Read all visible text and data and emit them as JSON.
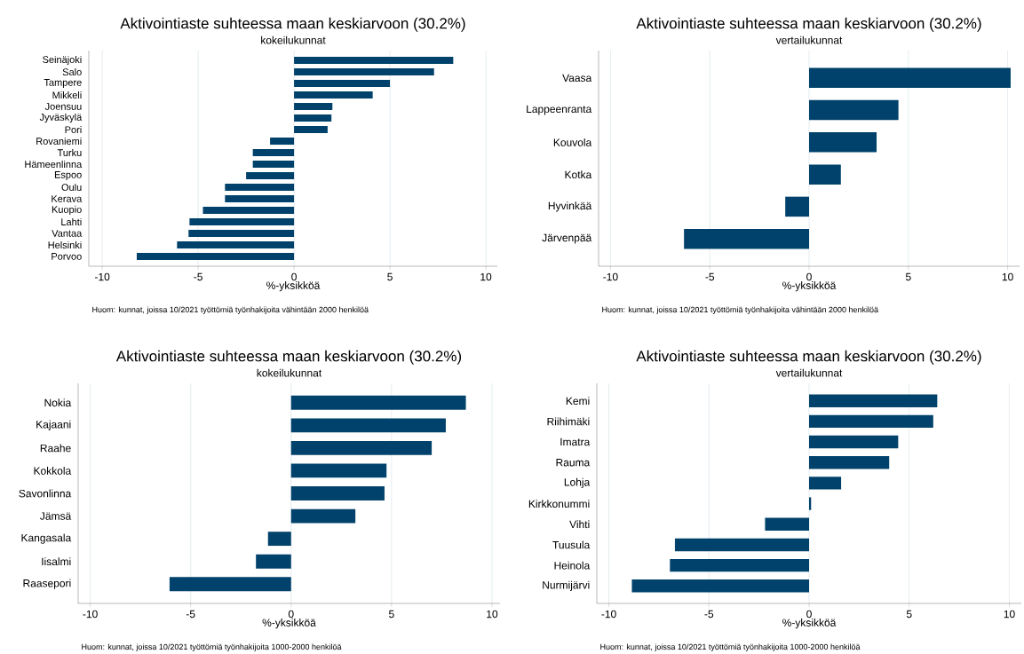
{
  "chart_data": [
    {
      "type": "bar",
      "orientation": "horizontal",
      "title": "Aktivointiaste suhteessa maan keskiarvoon (30.2%)",
      "subtitle": "kokeilukunnat",
      "xlabel": "%-yksikköä",
      "annotations": [
        "Huom: kunnat, joissa 10/2021 työttömiä työnhakijoita vähintään 2000 henkilöä"
      ],
      "categories": [
        "Seinäjoki",
        "Salo",
        "Tampere",
        "Mikkeli",
        "Joensuu",
        "Jyväskylä",
        "Pori",
        "Rovaniemi",
        "Turku",
        "Hämeenlinna",
        "Espoo",
        "Oulu",
        "Kerava",
        "Kuopio",
        "Lahti",
        "Vantaa",
        "Helsinki",
        "Porvoo"
      ],
      "values": [
        8.3,
        7.3,
        5.0,
        4.1,
        2.0,
        1.95,
        1.75,
        -1.25,
        -2.15,
        -2.15,
        -2.5,
        -3.6,
        -3.6,
        -4.75,
        -5.45,
        -5.5,
        -6.1,
        -8.2
      ],
      "color": "#00426b",
      "xlim": [
        -10.7,
        10.6
      ],
      "xticks": [
        -10,
        -5,
        0,
        5,
        10
      ],
      "grid": "x"
    },
    {
      "type": "bar",
      "orientation": "horizontal",
      "title": "Aktivointiaste suhteessa maan keskiarvoon (30.2%)",
      "subtitle": "vertailukunnat",
      "xlabel": "%-yksikköä",
      "annotations": [
        "Huom: kunnat, joissa 10/2021 työttömiä työnhakijoita vähintään 2000 henkilöä"
      ],
      "categories": [
        "Vaasa",
        "Lappeenranta",
        "Kouvola",
        "Kotka",
        "Hyvinkää",
        "Järvenpää"
      ],
      "values": [
        10.15,
        4.5,
        3.4,
        1.6,
        -1.2,
        -6.3
      ],
      "color": "#00426b",
      "xlim": [
        -10.6,
        10.6
      ],
      "xticks": [
        -10,
        -5,
        0,
        5,
        10
      ],
      "grid": "x"
    },
    {
      "type": "bar",
      "orientation": "horizontal",
      "title": "Aktivointiaste suhteessa maan keskiarvoon (30.2%)",
      "subtitle": "kokeilukunnat",
      "xlabel": "%-yksikköä",
      "annotations": [
        "Huom: kunnat, joissa 10/2021 työttömiä työnhakijoita 1000-2000 henkilöä"
      ],
      "categories": [
        "Nokia",
        "Kajaani",
        "Raahe",
        "Kokkola",
        "Savonlinna",
        "Jämsä",
        "Kangasala",
        "Iisalmi",
        "Raasepori"
      ],
      "values": [
        8.7,
        7.7,
        7.0,
        4.75,
        4.65,
        3.2,
        -1.15,
        -1.75,
        -6.05
      ],
      "color": "#00426b",
      "xlim": [
        -10.6,
        10.4
      ],
      "xticks": [
        -10,
        -5,
        0,
        5,
        10
      ],
      "grid": "x"
    },
    {
      "type": "bar",
      "orientation": "horizontal",
      "title": "Aktivointiaste suhteessa maan keskiarvoon (30.2%)",
      "subtitle": "vertailukunnat",
      "xlabel": "%-yksikköä",
      "annotations": [
        "Huom: kunnat, joissa 10/2021 työttömiä työnhakijoita 1000-2000 henkilöä"
      ],
      "categories": [
        "Kemi",
        "Riihimäki",
        "Imatra",
        "Rauma",
        "Lohja",
        "Kirkkonummi",
        "Vihti",
        "Tuusula",
        "Heinola",
        "Nurmijärvi"
      ],
      "values": [
        6.4,
        6.2,
        4.45,
        4.0,
        1.6,
        0.1,
        -2.2,
        -6.7,
        -6.95,
        -8.85
      ],
      "color": "#00426b",
      "xlim": [
        -10.6,
        10.6
      ],
      "xticks": [
        -10,
        -5,
        0,
        5,
        10
      ],
      "grid": "x"
    }
  ]
}
